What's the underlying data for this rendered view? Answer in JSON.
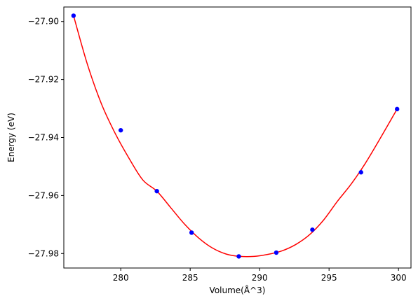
{
  "chart_data": {
    "type": "scatter",
    "title": "",
    "xlabel": "Volume(Å^3)",
    "ylabel": "Energy (eV)",
    "xlim": [
      275.9,
      300.9
    ],
    "ylim": [
      -27.985,
      -27.895
    ],
    "xticks": [
      280,
      285,
      290,
      295,
      300
    ],
    "yticks": [
      -27.9,
      -27.92,
      -27.94,
      -27.96,
      -27.98
    ],
    "xtick_labels": [
      "280",
      "285",
      "290",
      "295",
      "300"
    ],
    "ytick_labels": [
      "−27.90",
      "−27.92",
      "−27.94",
      "−27.96",
      "−27.98"
    ],
    "grid": false,
    "legend": "none",
    "series": [
      {
        "kind": "points",
        "color": "#0000ff",
        "x": [
          276.6,
          280.0,
          282.6,
          285.1,
          288.5,
          291.2,
          293.8,
          297.3,
          299.9
        ],
        "y": [
          -27.898,
          -27.9375,
          -27.9585,
          -27.9728,
          -27.981,
          -27.9797,
          -27.9718,
          -27.952,
          -27.9302
        ]
      },
      {
        "kind": "fit-curve",
        "color": "#ff0000",
        "x": [
          276.6,
          277.6,
          278.6,
          279.6,
          280.6,
          281.6,
          282.6,
          283.6,
          284.6,
          285.6,
          286.6,
          287.6,
          288.6,
          289.6,
          290.6,
          291.6,
          292.6,
          293.6,
          294.6,
          295.6,
          296.6,
          297.6,
          298.6,
          299.9
        ],
        "y": [
          -27.898,
          -27.9148,
          -27.9283,
          -27.9386,
          -27.9472,
          -27.9547,
          -27.9585,
          -27.9642,
          -27.9699,
          -27.9746,
          -27.9781,
          -27.9802,
          -27.981,
          -27.981,
          -27.9803,
          -27.9791,
          -27.9769,
          -27.9735,
          -27.9685,
          -27.962,
          -27.956,
          -27.949,
          -27.941,
          -27.9302
        ]
      }
    ]
  }
}
